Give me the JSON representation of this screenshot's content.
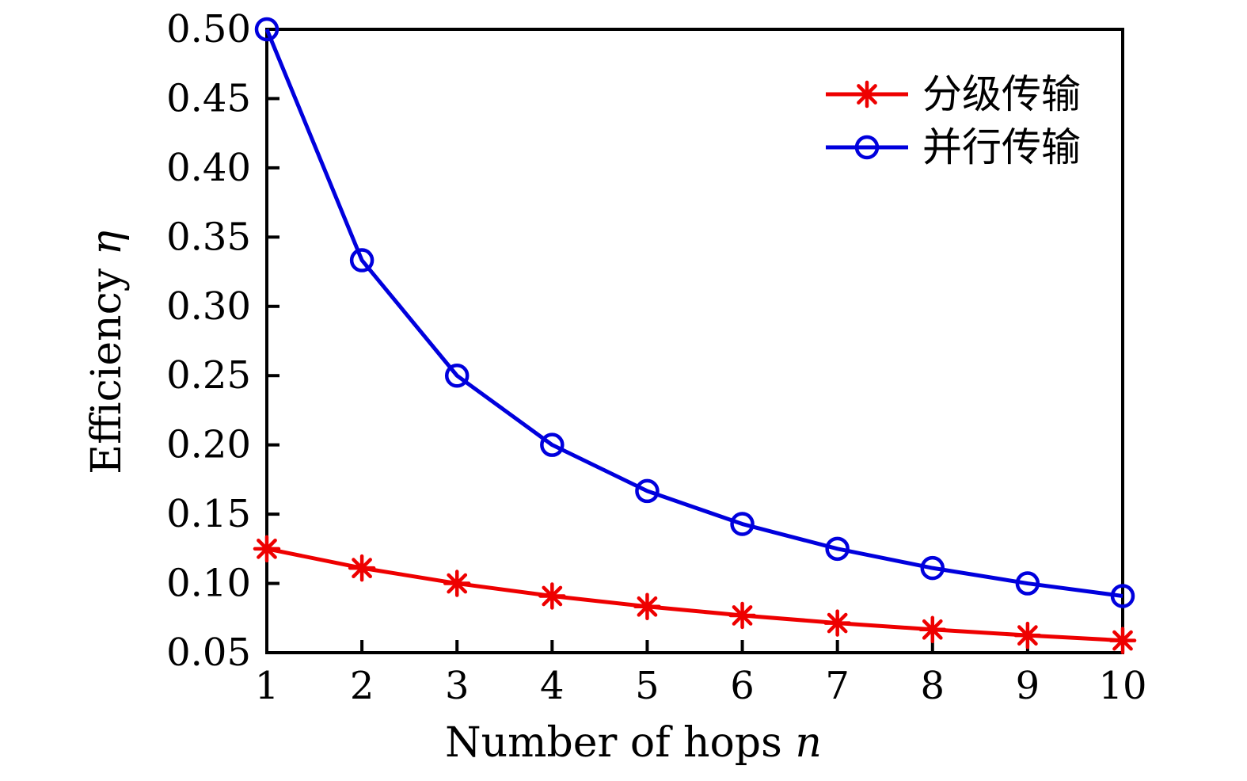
{
  "figure": {
    "background": "#ffffff",
    "axis_color": "#000000"
  },
  "chart_data": {
    "type": "line",
    "x": [
      1,
      2,
      3,
      4,
      5,
      6,
      7,
      8,
      9,
      10
    ],
    "series": [
      {
        "name": "分级传输",
        "color": "#ee0000",
        "marker": "asterisk",
        "values": [
          0.125,
          0.1111,
          0.1,
          0.0909,
          0.0833,
          0.0769,
          0.0714,
          0.0667,
          0.0625,
          0.0588
        ]
      },
      {
        "name": "并行传输",
        "color": "#0000dd",
        "marker": "circle",
        "values": [
          0.5,
          0.3333,
          0.25,
          0.2,
          0.1667,
          0.1429,
          0.125,
          0.1111,
          0.1,
          0.0909
        ]
      }
    ],
    "xlabel": {
      "prefix": "Number of hops ",
      "symbol": "n"
    },
    "ylabel": {
      "prefix": "Efficiency ",
      "symbol": "η"
    },
    "xlim": [
      1,
      10
    ],
    "ylim": [
      0.05,
      0.5
    ],
    "x_ticks": [
      1,
      2,
      3,
      4,
      5,
      6,
      7,
      8,
      9,
      10
    ],
    "y_ticks": [
      0.05,
      0.1,
      0.15,
      0.2,
      0.25,
      0.3,
      0.35,
      0.4,
      0.45,
      0.5
    ],
    "y_tick_decimals": 2,
    "grid": false,
    "legend_position": "top-right",
    "legend_box": false
  }
}
